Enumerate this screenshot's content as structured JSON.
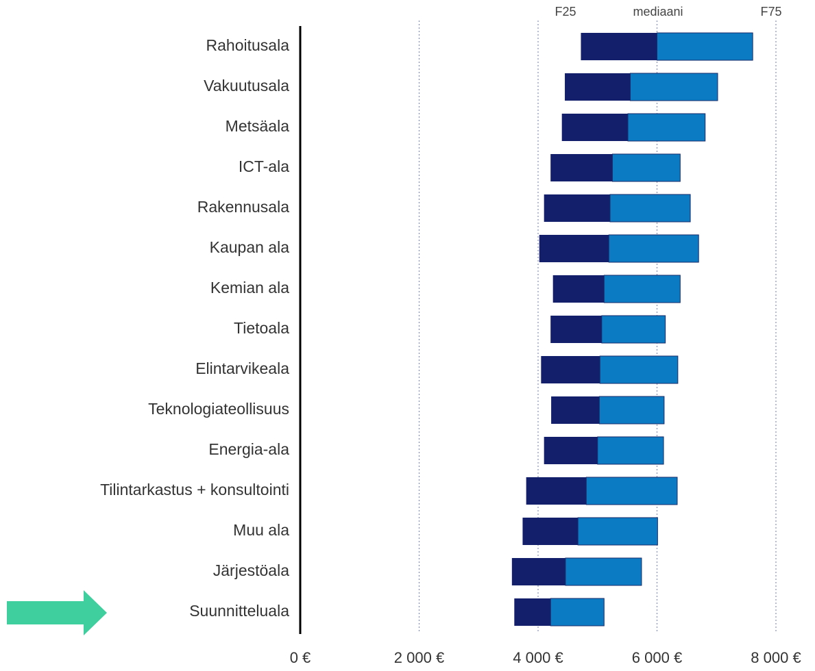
{
  "chart_data": {
    "type": "floating-bar",
    "categories": [
      "Rahoitusala",
      "Vakuutusala",
      "Metsäala",
      "ICT-ala",
      "Rakennusala",
      "Kaupan ala",
      "Kemian ala",
      "Tietoala",
      "Elintarvikeala",
      "Teknologiateollisuus",
      "Energia-ala",
      "Tilintarkastus + konsultointi",
      "Muu ala",
      "Järjestöala",
      "Suunnitteluala"
    ],
    "series": [
      {
        "name": "F25",
        "color": "#141f6b",
        "values": [
          4720,
          4450,
          4400,
          4210,
          4100,
          4020,
          4250,
          4210,
          4050,
          4220,
          4100,
          3800,
          3740,
          3560,
          3600
        ]
      },
      {
        "name": "mediaani",
        "color": "#0b7bc3",
        "values": [
          6000,
          5550,
          5510,
          5250,
          5210,
          5190,
          5110,
          5070,
          5040,
          5030,
          5000,
          4810,
          4670,
          4460,
          4210
        ]
      },
      {
        "name": "F75",
        "color": "#0b7bc3",
        "values": [
          7610,
          7020,
          6810,
          6390,
          6560,
          6700,
          6390,
          6140,
          6350,
          6120,
          6110,
          6340,
          6010,
          5740,
          5110
        ]
      }
    ],
    "xlim": [
      0,
      8000
    ],
    "xticks": [
      {
        "value": 0,
        "label": "0 €"
      },
      {
        "value": 2000,
        "label": "2 000 €"
      },
      {
        "value": 4000,
        "label": "4 000 €"
      },
      {
        "value": 6000,
        "label": "6 000 €"
      },
      {
        "value": 8000,
        "label": "8 000 €"
      }
    ],
    "grid": true
  }
}
